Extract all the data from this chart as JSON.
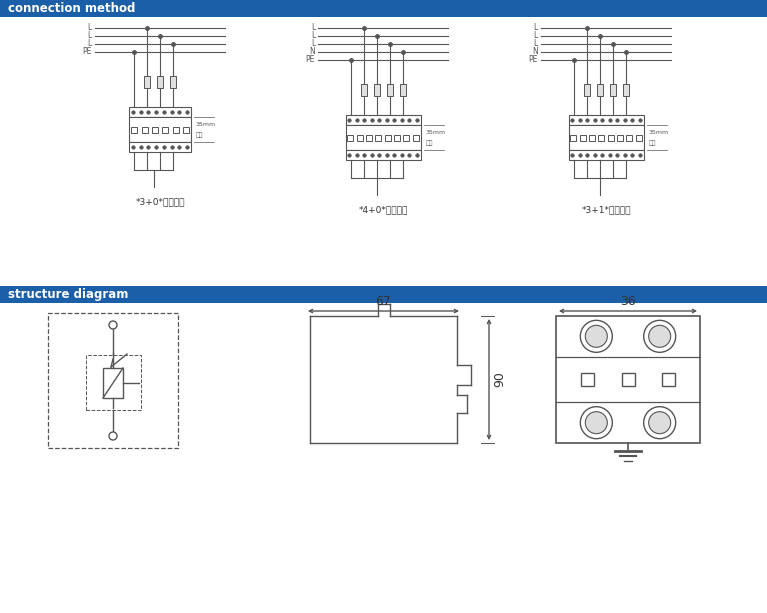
{
  "header1_text": "connection method",
  "header2_text": "structure diagram",
  "header_bg": "#1a5fa8",
  "header_text_color": "#ffffff",
  "bg_color": "#ffffff",
  "line_color": "#555555",
  "dim_67": "67",
  "dim_36": "36",
  "dim_90": "90",
  "label1": "*3+0*接线方式",
  "label2": "*4+0*接线方式",
  "label3": "*3+1*接线方式"
}
